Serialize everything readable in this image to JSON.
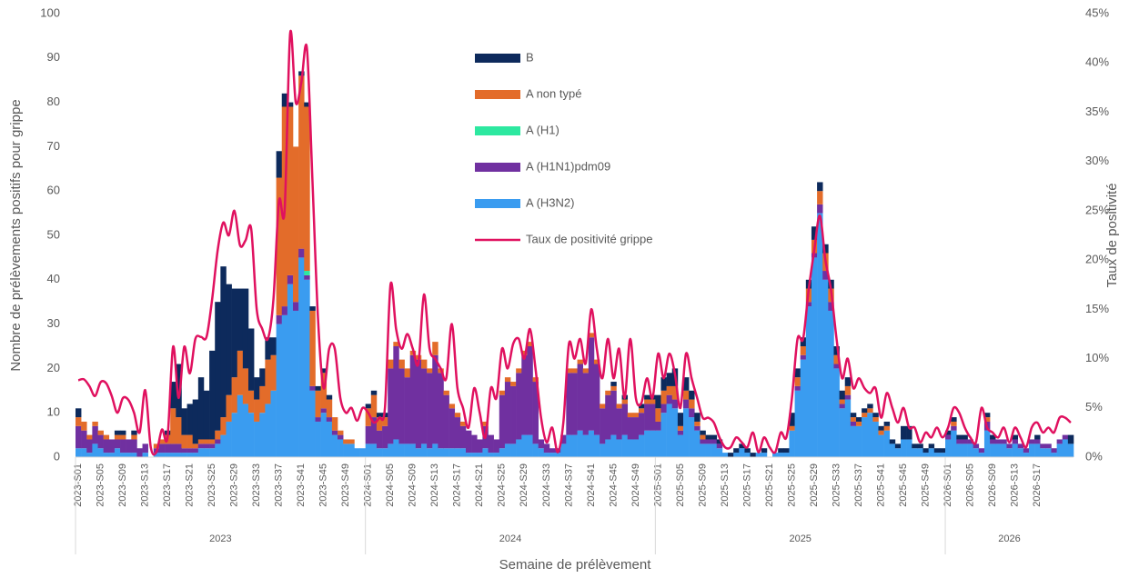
{
  "chart_data": {
    "type": "bar",
    "y_label": "Nombre de prélèvements positifs pour  grippe",
    "y2_label": "Taux de positivité",
    "x_label": "Semaine de prélèvement",
    "x_groups": [
      "2023",
      "2024",
      "2025",
      "2026"
    ],
    "categories": [
      "2023-S01",
      null,
      null,
      null,
      "2023-S05",
      null,
      null,
      null,
      "2023-S09",
      null,
      null,
      null,
      "2023-S13",
      null,
      null,
      null,
      "2023-S17",
      null,
      null,
      null,
      "2023-S21",
      null,
      null,
      null,
      "2023-S25",
      null,
      null,
      null,
      "2023-S29",
      null,
      null,
      null,
      "2023-S33",
      null,
      null,
      null,
      "2023-S37",
      null,
      null,
      null,
      "2023-S41",
      null,
      null,
      null,
      "2023-S45",
      null,
      null,
      null,
      "2023-S49",
      null,
      null,
      null,
      "2024-S01",
      null,
      null,
      null,
      "2024-S05",
      null,
      null,
      null,
      "2024-S09",
      null,
      null,
      null,
      "2024-S13",
      null,
      null,
      null,
      "2024-S17",
      null,
      null,
      null,
      "2024-S21",
      null,
      null,
      null,
      "2024-S25",
      null,
      null,
      null,
      "2024-S29",
      null,
      null,
      null,
      "2024-S33",
      null,
      null,
      null,
      "2024-S37",
      null,
      null,
      null,
      "2024-S41",
      null,
      null,
      null,
      "2024-S45",
      null,
      null,
      null,
      "2024-S49",
      null,
      null,
      null,
      "2025-S01",
      null,
      null,
      null,
      "2025-S05",
      null,
      null,
      null,
      "2025-S09",
      null,
      null,
      null,
      "2025-S13",
      null,
      null,
      null,
      "2025-S17",
      null,
      null,
      null,
      "2025-S21",
      null,
      null,
      null,
      "2025-S25",
      null,
      null,
      null,
      "2025-S29",
      null,
      null,
      null,
      "2025-S33",
      null,
      null,
      null,
      "2025-S37",
      null,
      null,
      null,
      "2025-S41",
      null,
      null,
      null,
      "2025-S45",
      null,
      null,
      null,
      "2025-S49",
      null,
      null,
      null,
      "2026-S01",
      null,
      null,
      null,
      "2026-S05",
      null,
      null,
      null,
      "2026-S09",
      null,
      null,
      null,
      "2026-S13",
      null,
      null,
      null,
      "2026-S17",
      null,
      null,
      null,
      null,
      null,
      null
    ],
    "series": [
      {
        "name": "B",
        "color": "#0d2a5c",
        "values": [
          2,
          0,
          0,
          0,
          0,
          0,
          0,
          1,
          1,
          0,
          1,
          0,
          0,
          0,
          0,
          0,
          1,
          6,
          12,
          6,
          7,
          10,
          14,
          11,
          20,
          29,
          34,
          25,
          20,
          14,
          18,
          14,
          5,
          4,
          5,
          4,
          6,
          3,
          1,
          0,
          1,
          1,
          1,
          1,
          1,
          1,
          0,
          0,
          0,
          0,
          0,
          0,
          1,
          1,
          1,
          1,
          0,
          0,
          0,
          0,
          0,
          0,
          0,
          0,
          0,
          0,
          0,
          0,
          0,
          0,
          0,
          0,
          0,
          0,
          0,
          0,
          0,
          0,
          0,
          0,
          0,
          0,
          0,
          0,
          0,
          0,
          0,
          0,
          0,
          0,
          0,
          0,
          0,
          0,
          0,
          0,
          1,
          0,
          1,
          0,
          0,
          1,
          1,
          1,
          3,
          3,
          3,
          4,
          3,
          3,
          2,
          2,
          1,
          1,
          1,
          1,
          0,
          1,
          1,
          1,
          1,
          1,
          0,
          1,
          0,
          0,
          1,
          1,
          3,
          2,
          2,
          2,
          3,
          2,
          2,
          2,
          2,
          2,
          2,
          1,
          1,
          1,
          1,
          1,
          1,
          1,
          1,
          1,
          3,
          3,
          1,
          1,
          1,
          1,
          1,
          1,
          1,
          1,
          1,
          1,
          0,
          0,
          0,
          1,
          1,
          0,
          0,
          0,
          1,
          0,
          0,
          0,
          1,
          0,
          0,
          0,
          0,
          0,
          2
        ]
      },
      {
        "name": "A non typé",
        "color": "#e36c2a",
        "values": [
          2,
          2,
          1,
          1,
          1,
          1,
          0,
          1,
          1,
          0,
          1,
          0,
          0,
          0,
          1,
          1,
          2,
          8,
          6,
          3,
          3,
          1,
          1,
          1,
          1,
          2,
          4,
          6,
          8,
          10,
          8,
          5,
          5,
          6,
          10,
          8,
          31,
          45,
          38,
          35,
          39,
          37,
          17,
          6,
          8,
          4,
          3,
          1,
          1,
          1,
          0,
          0,
          4,
          5,
          3,
          2,
          2,
          1,
          2,
          2,
          1,
          1,
          2,
          1,
          3,
          1,
          1,
          1,
          1,
          1,
          0,
          0,
          0,
          1,
          0,
          0,
          1,
          1,
          1,
          1,
          1,
          1,
          1,
          0,
          0,
          0,
          0,
          0,
          1,
          1,
          1,
          1,
          1,
          1,
          1,
          1,
          1,
          1,
          1,
          1,
          1,
          1,
          1,
          1,
          3,
          3,
          2,
          3,
          1,
          2,
          2,
          1,
          1,
          0,
          0,
          0,
          0,
          0,
          0,
          0,
          0,
          0,
          0,
          0,
          0,
          0,
          0,
          0,
          1,
          2,
          2,
          3,
          3,
          3,
          4,
          3,
          2,
          1,
          2,
          1,
          1,
          1,
          1,
          1,
          1,
          1,
          0,
          0,
          0,
          0,
          0,
          0,
          0,
          0,
          0,
          0,
          0,
          1,
          0,
          0,
          0,
          0,
          0,
          1,
          0,
          0,
          0,
          0,
          0,
          0,
          0,
          0,
          0,
          0,
          0,
          0,
          0,
          0,
          0
        ]
      },
      {
        "name": "A (H1)",
        "color": "#2de8a0",
        "values": [
          0,
          0,
          0,
          0,
          0,
          0,
          0,
          0,
          0,
          0,
          0,
          0,
          0,
          0,
          0,
          0,
          0,
          0,
          0,
          0,
          0,
          0,
          0,
          0,
          0,
          0,
          0,
          0,
          0,
          0,
          0,
          0,
          0,
          0,
          0,
          0,
          0,
          0,
          0,
          0,
          0,
          1,
          0,
          0,
          0,
          0,
          0,
          0,
          0,
          0,
          0,
          0,
          0,
          0,
          0,
          0,
          0,
          0,
          0,
          0,
          0,
          0,
          0,
          0,
          0,
          0,
          0,
          0,
          0,
          0,
          0,
          0,
          0,
          0,
          0,
          0,
          0,
          0,
          0,
          0,
          0,
          0,
          0,
          0,
          0,
          0,
          0,
          0,
          0,
          0,
          0,
          0,
          0,
          0,
          0,
          0,
          0,
          0,
          0,
          0,
          0,
          0,
          0,
          0,
          0,
          0,
          0,
          0,
          0,
          0,
          0,
          0,
          0,
          0,
          0,
          0,
          0,
          0,
          0,
          0,
          0,
          0,
          0,
          0,
          0,
          0,
          0,
          0,
          0,
          0,
          0,
          0,
          0,
          0,
          0,
          0,
          0,
          0,
          0,
          0,
          0,
          0,
          0,
          0,
          0,
          0,
          0,
          0,
          0,
          0,
          0,
          0,
          0,
          0,
          0,
          0,
          0,
          0,
          0,
          0,
          0,
          0,
          0,
          0,
          0,
          0,
          0,
          0,
          0,
          0,
          0,
          0,
          0,
          0,
          0,
          0,
          0,
          0,
          0
        ]
      },
      {
        "name": "A (H1N1)pdm09",
        "color": "#7030a0",
        "values": [
          5,
          4,
          3,
          4,
          3,
          3,
          3,
          2,
          3,
          3,
          3,
          2,
          2,
          0,
          1,
          2,
          2,
          2,
          2,
          1,
          1,
          1,
          1,
          1,
          1,
          1,
          0,
          0,
          0,
          0,
          0,
          0,
          0,
          0,
          0,
          0,
          2,
          2,
          2,
          2,
          2,
          1,
          1,
          1,
          1,
          1,
          1,
          1,
          0,
          0,
          0,
          0,
          4,
          6,
          4,
          5,
          17,
          21,
          17,
          15,
          20,
          20,
          17,
          17,
          20,
          17,
          12,
          9,
          7,
          5,
          5,
          4,
          3,
          5,
          4,
          3,
          12,
          14,
          13,
          15,
          18,
          20,
          14,
          2,
          2,
          1,
          1,
          2,
          14,
          14,
          15,
          14,
          21,
          16,
          8,
          10,
          10,
          7,
          7,
          5,
          5,
          5,
          6,
          6,
          2,
          2,
          2,
          2,
          1,
          2,
          2,
          1,
          1,
          1,
          1,
          1,
          0,
          0,
          0,
          0,
          0,
          0,
          0,
          0,
          0,
          0,
          0,
          0,
          0,
          1,
          1,
          1,
          1,
          2,
          2,
          2,
          1,
          1,
          1,
          1,
          0,
          0,
          0,
          0,
          0,
          0,
          0,
          0,
          0,
          0,
          0,
          0,
          0,
          0,
          0,
          0,
          1,
          1,
          1,
          1,
          1,
          1,
          1,
          2,
          1,
          1,
          1,
          1,
          1,
          1,
          1,
          1,
          1,
          1,
          1,
          1,
          1,
          1,
          0
        ]
      },
      {
        "name": "A (H3N2)",
        "color": "#3a9cf0",
        "values": [
          2,
          2,
          1,
          3,
          2,
          1,
          1,
          2,
          1,
          1,
          1,
          0,
          1,
          0,
          1,
          1,
          1,
          1,
          1,
          1,
          1,
          1,
          2,
          2,
          2,
          3,
          5,
          8,
          10,
          14,
          12,
          10,
          8,
          10,
          12,
          15,
          30,
          32,
          39,
          33,
          45,
          40,
          15,
          8,
          10,
          8,
          5,
          4,
          3,
          3,
          2,
          2,
          3,
          3,
          2,
          2,
          3,
          4,
          3,
          3,
          3,
          2,
          3,
          2,
          3,
          2,
          2,
          2,
          2,
          2,
          1,
          1,
          1,
          2,
          1,
          1,
          2,
          3,
          3,
          4,
          5,
          5,
          3,
          2,
          1,
          1,
          1,
          3,
          5,
          5,
          6,
          5,
          6,
          5,
          3,
          4,
          5,
          4,
          5,
          4,
          4,
          5,
          6,
          6,
          6,
          10,
          12,
          11,
          5,
          11,
          9,
          6,
          3,
          3,
          3,
          2,
          1,
          0,
          1,
          2,
          1,
          0,
          1,
          1,
          0,
          1,
          1,
          1,
          6,
          15,
          22,
          34,
          45,
          55,
          40,
          33,
          20,
          11,
          13,
          7,
          7,
          9,
          10,
          8,
          5,
          6,
          3,
          2,
          4,
          4,
          2,
          2,
          1,
          2,
          1,
          1,
          4,
          6,
          3,
          3,
          3,
          2,
          1,
          6,
          3,
          3,
          3,
          2,
          3,
          2,
          1,
          3,
          3,
          2,
          2,
          1,
          3,
          4,
          3
        ]
      },
      {
        "name": "Taux de positivité grippe",
        "color": "#e0115f",
        "type": "line",
        "axis": "y2",
        "values": [
          7.8,
          7.9,
          7.2,
          6.2,
          7.6,
          7.5,
          6.2,
          4.5,
          6.0,
          5.8,
          4.5,
          2.5,
          6.8,
          1.0,
          0.5,
          2.8,
          2.0,
          11.2,
          6.0,
          11.2,
          8.5,
          12.0,
          12.2,
          12.2,
          16,
          21,
          23.8,
          22.5,
          25.0,
          21.5,
          22,
          23.2,
          15,
          13,
          12,
          16,
          26,
          25,
          43,
          36,
          38,
          41.5,
          28,
          14,
          7,
          11,
          11,
          6,
          4.5,
          5,
          3.7,
          5,
          4.5,
          3.5,
          4.0,
          5.0,
          17.5,
          13,
          11,
          12.5,
          11,
          9.5,
          16.5,
          11,
          10,
          9,
          8,
          13.5,
          7,
          5,
          3,
          7,
          4.5,
          2,
          7,
          6,
          11,
          9,
          11.5,
          12,
          10,
          13,
          9,
          4,
          1.5,
          3,
          0.5,
          3.5,
          11.5,
          10,
          12,
          9.5,
          15,
          11,
          8,
          12,
          8,
          11,
          6,
          12,
          6,
          5.5,
          8,
          6,
          10.5,
          8,
          10.5,
          8.5,
          5,
          10.5,
          8,
          6,
          4,
          4,
          3.5,
          2,
          1,
          1,
          2,
          1.5,
          1,
          2.5,
          0.5,
          2,
          1,
          0.5,
          2.5,
          2,
          6,
          12,
          12,
          17,
          21,
          24.5,
          20,
          17,
          12,
          8,
          10,
          7,
          8,
          7,
          6.5,
          7,
          4,
          6.5,
          5,
          3.5,
          5,
          3,
          3,
          1.5,
          2.5,
          2,
          3,
          2,
          3,
          5,
          4.5,
          3,
          2,
          1.5,
          5,
          3,
          2.5,
          2,
          3,
          1.5,
          3,
          2,
          1,
          3,
          3.5,
          2.5,
          3,
          2.5,
          4,
          4,
          3.5
        ]
      }
    ],
    "ylim": [
      0,
      100
    ],
    "yticks": [
      0,
      10,
      20,
      30,
      40,
      50,
      60,
      70,
      80,
      90,
      100
    ],
    "y2lim": [
      0,
      45
    ],
    "y2ticks": [
      {
        "value": 0,
        "label": "0%"
      },
      {
        "value": 5,
        "label": "5%"
      },
      {
        "value": 10,
        "label": "10%"
      },
      {
        "value": 15,
        "label": "15%"
      },
      {
        "value": 20,
        "label": "20%"
      },
      {
        "value": 25,
        "label": "25%"
      },
      {
        "value": 30,
        "label": "30%"
      },
      {
        "value": 35,
        "label": "35%"
      },
      {
        "value": 40,
        "label": "40%"
      },
      {
        "value": 45,
        "label": "45%"
      }
    ],
    "grid": false
  }
}
